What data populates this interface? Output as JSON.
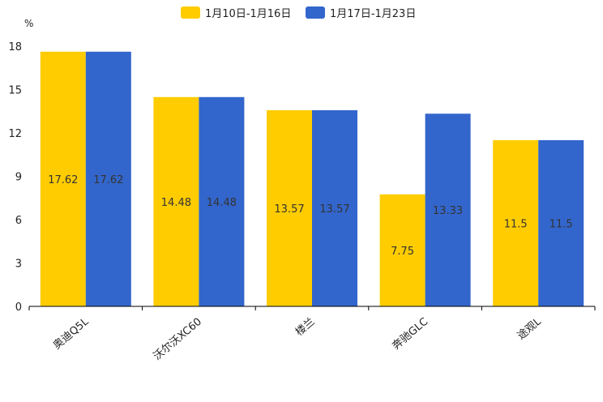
{
  "chart_data": {
    "type": "bar",
    "title": "",
    "xlabel": "",
    "ylabel": "",
    "y_unit": "%",
    "ylim": [
      0,
      18
    ],
    "yticks": [
      0,
      3,
      6,
      9,
      12,
      15,
      18
    ],
    "grid": false,
    "legend_position": "top-center",
    "categories": [
      "奥迪Q5L",
      "沃尔沃XC60",
      "楼兰",
      "奔驰GLC",
      "途观L"
    ],
    "series": [
      {
        "name": "1月10日-1月16日",
        "color": "#FFCC00",
        "values": [
          17.62,
          14.48,
          13.57,
          7.75,
          11.5
        ]
      },
      {
        "name": "1月17日-1月23日",
        "color": "#3366CC",
        "values": [
          17.62,
          14.48,
          13.57,
          13.33,
          11.5
        ]
      }
    ]
  }
}
